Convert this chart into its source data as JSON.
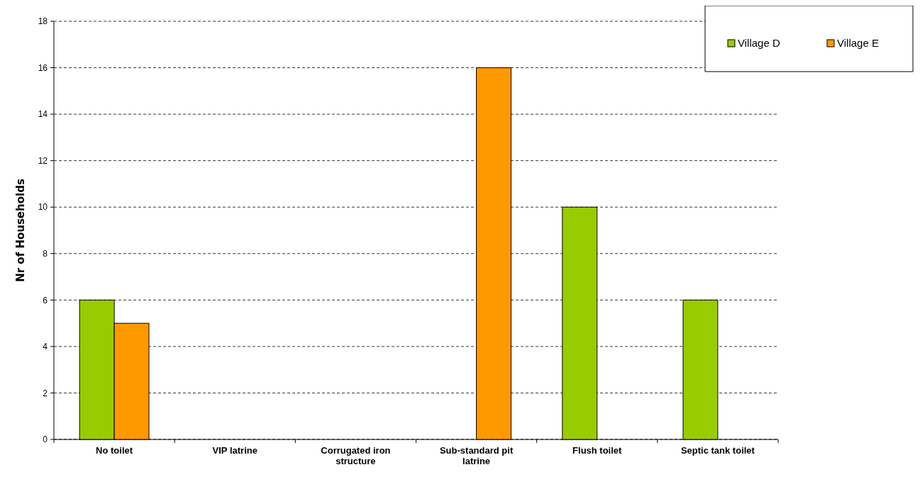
{
  "chart_data": {
    "type": "bar",
    "ylabel": "Nr of  Households",
    "categories": [
      "No toilet",
      "VIP latrine",
      "Corrugated iron structure",
      "Sub-standard pit latrine",
      "Flush toilet",
      "Septic tank toilet"
    ],
    "series": [
      {
        "name": "Village D",
        "color": "#99cc00",
        "values": [
          6,
          0,
          0,
          0,
          10,
          6
        ]
      },
      {
        "name": "Village E",
        "color": "#ff9900",
        "values": [
          5,
          0,
          0,
          16,
          0,
          0
        ]
      }
    ],
    "ylim": [
      0,
      18
    ],
    "yticks": [
      0,
      2,
      4,
      6,
      8,
      10,
      12,
      14,
      16,
      18
    ],
    "grid": "y",
    "legend": "top right"
  }
}
